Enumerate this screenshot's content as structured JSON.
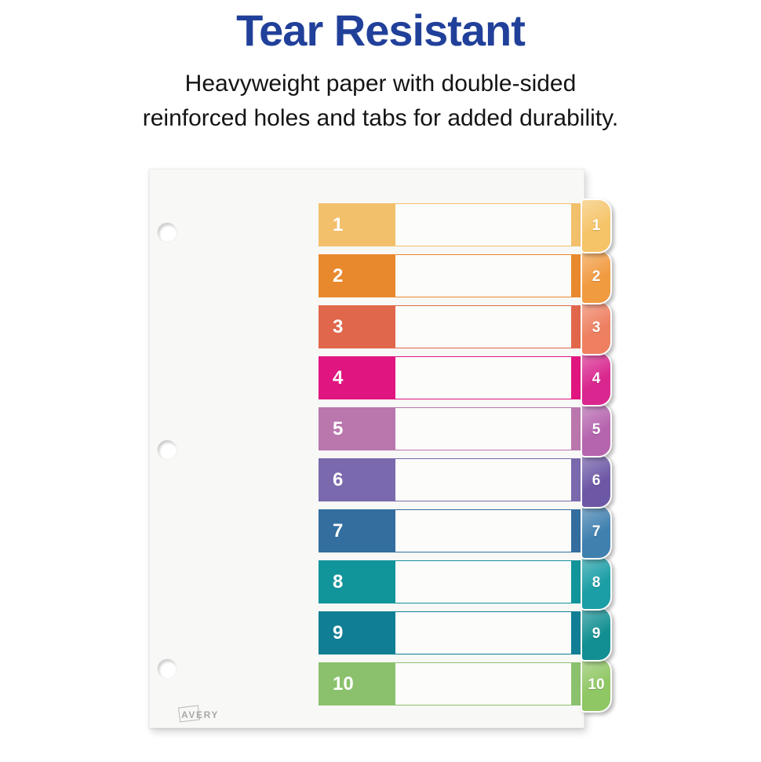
{
  "header": {
    "title": "Tear Resistant",
    "title_color": "#21409A",
    "subtitle_line1": "Heavyweight paper with double-sided",
    "subtitle_line2": "reinforced holes and tabs for added durability.",
    "subtitle_color": "#141414"
  },
  "product": {
    "brand": "AVERY",
    "paper_color": "#F8F8F6",
    "dividers": [
      {
        "number": "1",
        "color": "#F2C06B",
        "tab_color": "#F5C468"
      },
      {
        "number": "2",
        "color": "#E9892D",
        "tab_color": "#F19B41"
      },
      {
        "number": "3",
        "color": "#E0674B",
        "tab_color": "#EE8061"
      },
      {
        "number": "4",
        "color": "#E0157F",
        "tab_color": "#D9278F"
      },
      {
        "number": "5",
        "color": "#B977AE",
        "tab_color": "#B565AE"
      },
      {
        "number": "6",
        "color": "#7A69AD",
        "tab_color": "#6D58A6"
      },
      {
        "number": "7",
        "color": "#336E9F",
        "tab_color": "#4080AF"
      },
      {
        "number": "8",
        "color": "#12949B",
        "tab_color": "#1B9EA5"
      },
      {
        "number": "9",
        "color": "#107E94",
        "tab_color": "#128F92"
      },
      {
        "number": "10",
        "color": "#8BC16D",
        "tab_color": "#8FC764"
      }
    ]
  }
}
